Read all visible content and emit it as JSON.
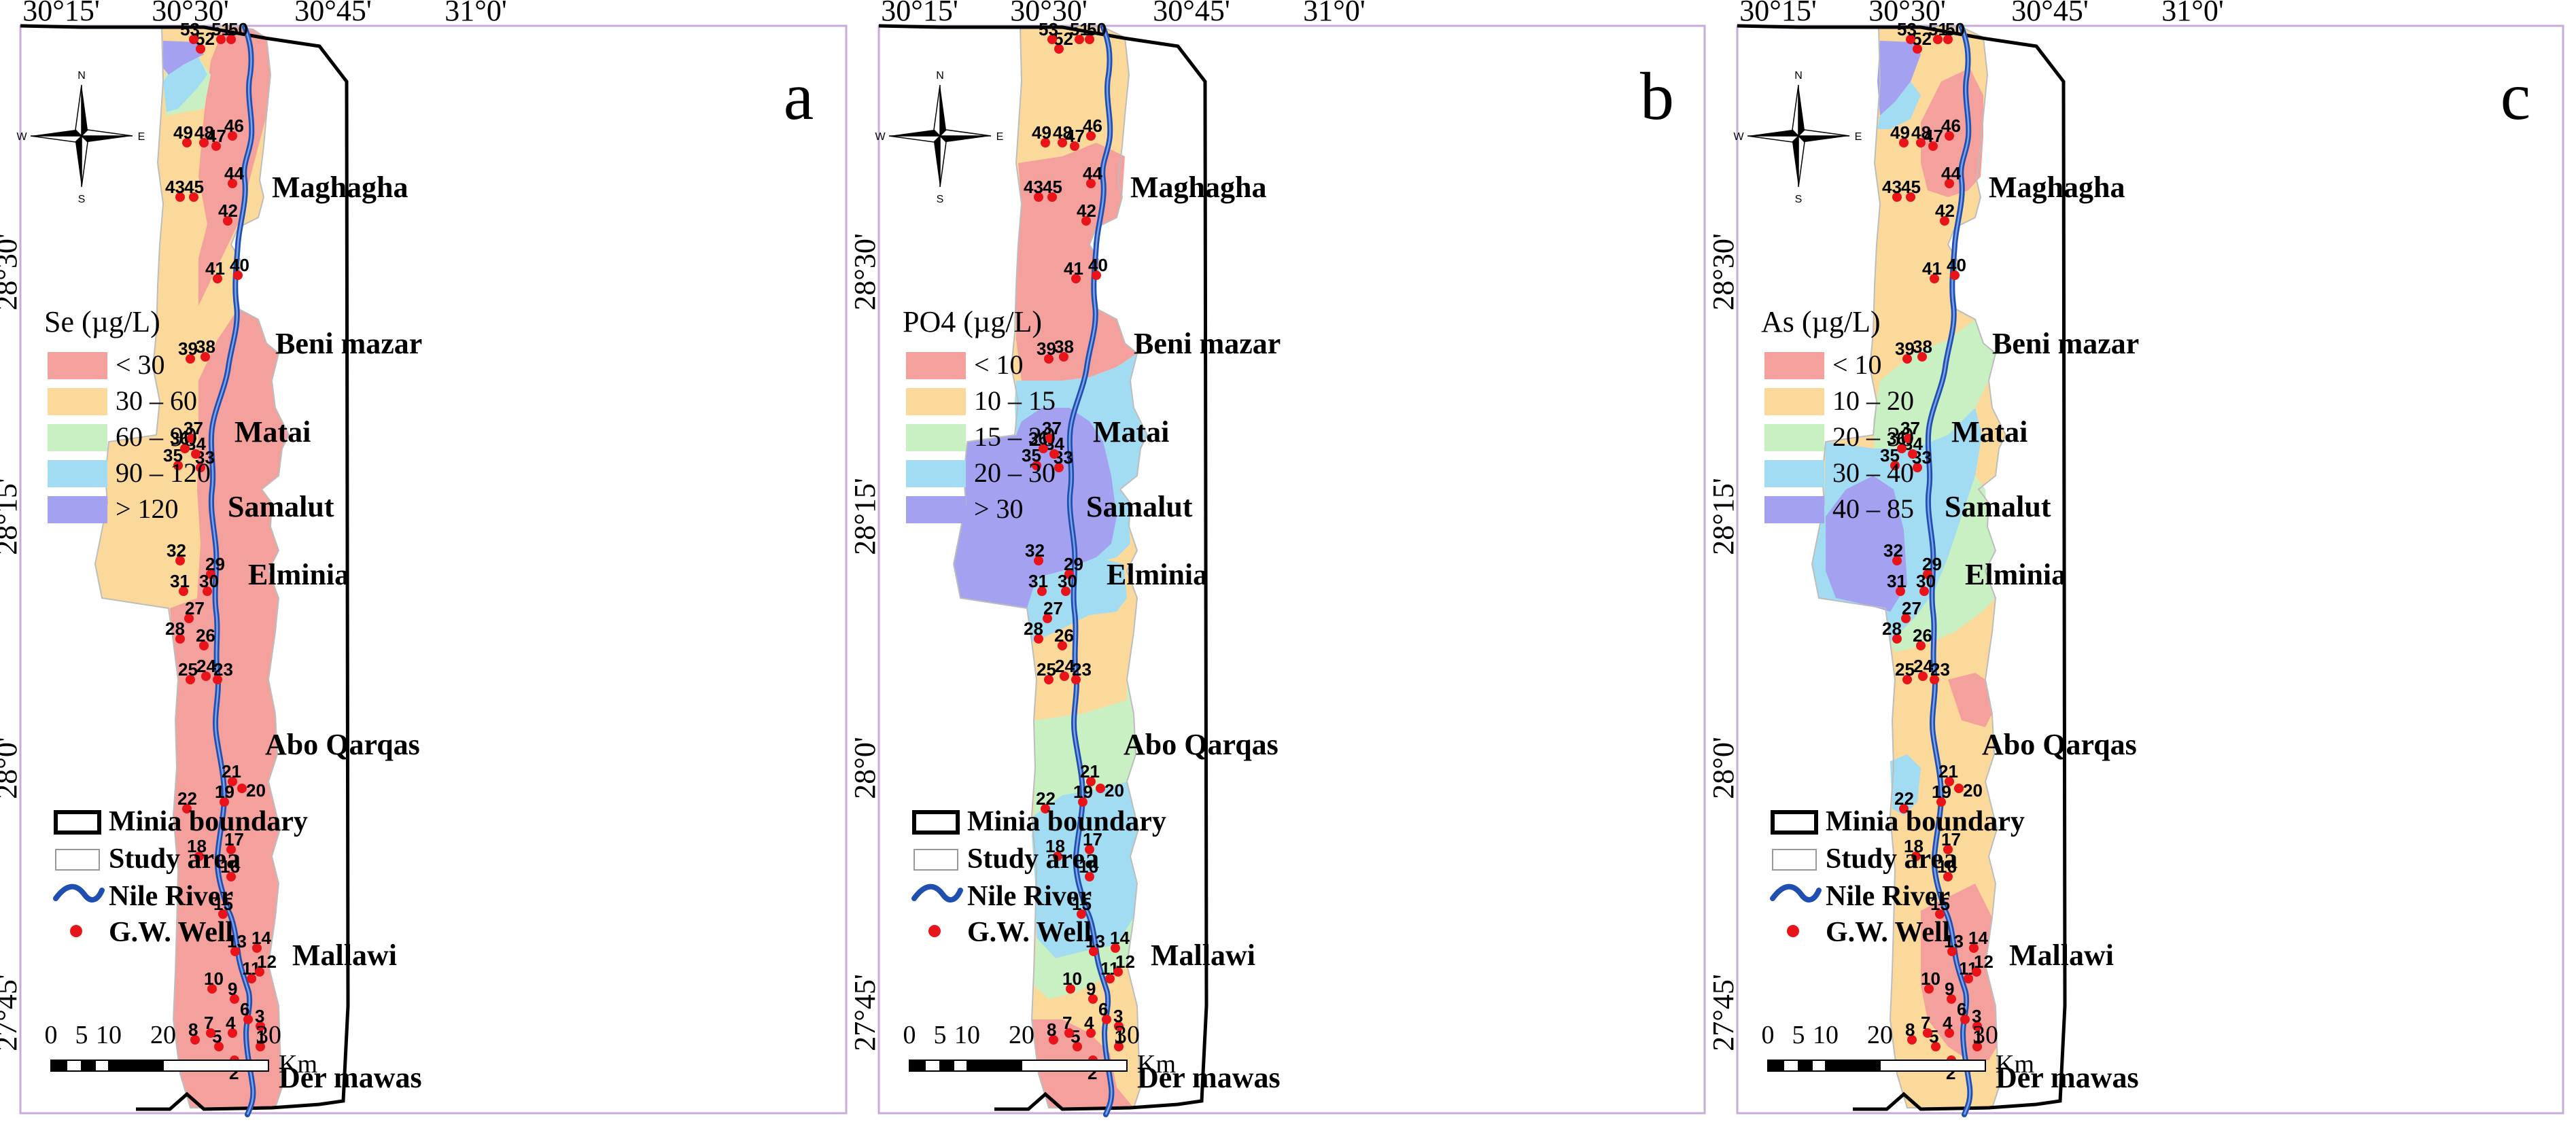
{
  "figure": {
    "lon_labels": [
      "30°15'",
      "30°30'",
      "30°45'",
      "31°0'"
    ],
    "lat_labels": [
      "28°30'",
      "28°15'",
      "28°0'",
      "27°45'"
    ],
    "towns": [
      "Maghagha",
      "Beni mazar",
      "Matai",
      "Samalut",
      "Elminia",
      "Abo Qarqas",
      "Mallawi",
      "Der mawas"
    ],
    "compass": {
      "n": "N",
      "s": "S",
      "e": "E",
      "w": "W"
    },
    "base_legend": {
      "minia_boundary": "Minia boundary",
      "study_area": "Study area",
      "nile_river": "Nile River",
      "well": "G.W. Well"
    },
    "scale_bar": {
      "ticks": [
        "0",
        "5",
        "10",
        "20",
        "30"
      ],
      "unit": "Km"
    },
    "wells": [
      "1",
      "2",
      "3",
      "4",
      "5",
      "6",
      "7",
      "8",
      "9",
      "10",
      "11",
      "12",
      "13",
      "14",
      "15",
      "16",
      "17",
      "18",
      "19",
      "20",
      "21",
      "22",
      "23",
      "24",
      "25",
      "26",
      "27",
      "28",
      "29",
      "30",
      "31",
      "32",
      "33",
      "34",
      "35",
      "36",
      "37",
      "38",
      "39",
      "40",
      "41",
      "42",
      "43",
      "44",
      "45",
      "46",
      "47",
      "48",
      "49",
      "50",
      "51",
      "52",
      "53"
    ]
  },
  "panels": [
    {
      "letter": "a",
      "legend_title": "Se (µg/L)",
      "classes": [
        {
          "label": "< 30",
          "color": "#f4a09c"
        },
        {
          "label": "30 – 60",
          "color": "#fbd99b"
        },
        {
          "label": "60 – 90",
          "color": "#c9f0c3"
        },
        {
          "label": "90 – 120",
          "color": "#a2dcf2"
        },
        {
          "label": "> 120",
          "color": "#a4a1f1"
        }
      ]
    },
    {
      "letter": "b",
      "legend_title": "PO4 (µg/L)",
      "classes": [
        {
          "label": "< 10",
          "color": "#f4a09c"
        },
        {
          "label": "10 – 15",
          "color": "#fbd99b"
        },
        {
          "label": "15 – 20",
          "color": "#c9f0c3"
        },
        {
          "label": "20 – 30",
          "color": "#a2dcf2"
        },
        {
          "label": "> 30",
          "color": "#a4a1f1"
        }
      ]
    },
    {
      "letter": "c",
      "legend_title": "As (µg/L)",
      "classes": [
        {
          "label": "< 10",
          "color": "#f4a09c"
        },
        {
          "label": "10 – 20",
          "color": "#fbd99b"
        },
        {
          "label": "20 – 30",
          "color": "#c9f0c3"
        },
        {
          "label": "30 – 40",
          "color": "#a2dcf2"
        },
        {
          "label": "40 – 85",
          "color": "#a4a1f1"
        }
      ]
    }
  ]
}
